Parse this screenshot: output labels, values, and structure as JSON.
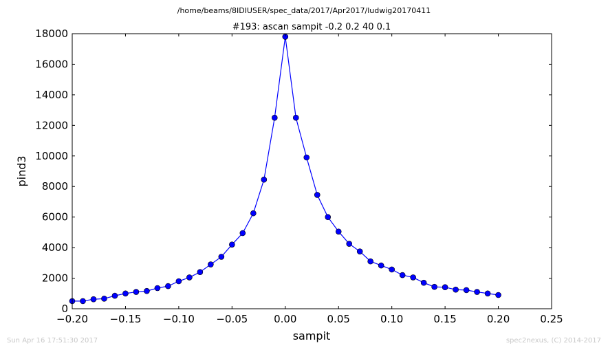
{
  "chart_data": {
    "type": "line",
    "suptitle": "/home/beams/8IDIUSER/spec_data/2017/Apr2017/ludwig20170411",
    "title": "#193: ascan  sampit -0.2 0.2  40 0.1",
    "xlabel": "sampit",
    "ylabel": "pind3",
    "xlim": [
      -0.2,
      0.25
    ],
    "ylim": [
      0,
      18000
    ],
    "xticks": [
      "−0.20",
      "−0.15",
      "−0.10",
      "−0.05",
      "0.00",
      "0.05",
      "0.10",
      "0.15",
      "0.20",
      "0.25"
    ],
    "yticks": [
      "0",
      "2000",
      "4000",
      "6000",
      "8000",
      "10000",
      "12000",
      "14000",
      "16000",
      "18000"
    ],
    "grid": false,
    "series": [
      {
        "color": "#0000ff",
        "marker": "circle",
        "x": [
          -0.2,
          -0.19,
          -0.18,
          -0.17,
          -0.16,
          -0.15,
          -0.14,
          -0.13,
          -0.12,
          -0.11,
          -0.1,
          -0.09,
          -0.08,
          -0.07,
          -0.06,
          -0.05,
          -0.04,
          -0.03,
          -0.02,
          -0.01,
          0.0,
          0.01,
          0.02,
          0.03,
          0.04,
          0.05,
          0.06,
          0.07,
          0.08,
          0.09,
          0.1,
          0.11,
          0.12,
          0.13,
          0.14,
          0.15,
          0.16,
          0.17,
          0.18,
          0.19,
          0.2
        ],
        "y": [
          500,
          500,
          620,
          660,
          850,
          1000,
          1100,
          1160,
          1350,
          1480,
          1800,
          2050,
          2400,
          2900,
          3400,
          4200,
          4950,
          6250,
          8450,
          12500,
          17800,
          12500,
          9900,
          7450,
          6000,
          5050,
          4250,
          3750,
          3100,
          2830,
          2570,
          2200,
          2050,
          1700,
          1430,
          1410,
          1250,
          1220,
          1100,
          1000,
          900
        ]
      }
    ]
  },
  "footer": {
    "timestamp": "Sun Apr 16 17:51:30 2017",
    "credit": "spec2nexus, (C) 2014-2017"
  }
}
